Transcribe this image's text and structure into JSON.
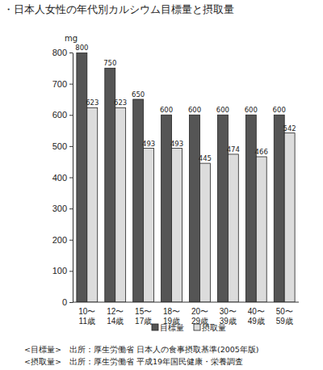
{
  "chart_data": {
    "type": "bar",
    "title": "・日本人女性の年代別カルシウム目標量と摂取量",
    "y_label": "mg",
    "categories": [
      "10〜11歳",
      "12〜14歳",
      "15〜17歳",
      "18〜19歳",
      "20〜29歳",
      "30〜39歳",
      "40〜49歳",
      "50〜59歳"
    ],
    "series": [
      {
        "name": "目標量",
        "color": "#555555",
        "values": [
          800,
          750,
          650,
          600,
          600,
          600,
          600,
          600
        ]
      },
      {
        "name": "摂取量",
        "color": "#dcdcdc",
        "values": [
          623,
          623,
          493,
          493,
          445,
          474,
          466,
          542
        ]
      }
    ],
    "ylim": [
      0,
      800
    ],
    "yticks": [
      0,
      100,
      200,
      300,
      400,
      500,
      600,
      700,
      800
    ],
    "grid": false,
    "legend": "bottom",
    "data_labels": true,
    "annotations": [
      "<目標量>　出所：厚生労働省 日本人の食事摂取基準(2005年版)",
      "<摂取量>　出所：厚生労働省 平成19年国民健康・栄養調査"
    ]
  }
}
